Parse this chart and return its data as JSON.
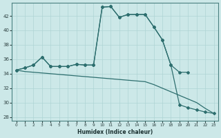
{
  "xlabel": "Humidex (Indice chaleur)",
  "x_ticks": [
    0,
    1,
    2,
    3,
    4,
    5,
    6,
    7,
    8,
    9,
    10,
    11,
    12,
    13,
    14,
    15,
    16,
    17,
    18,
    19,
    20,
    21,
    22,
    23
  ],
  "y_ticks": [
    28,
    30,
    32,
    34,
    36,
    38,
    40,
    42
  ],
  "ylim": [
    27.5,
    43.8
  ],
  "xlim": [
    -0.5,
    23.5
  ],
  "bg_color": "#cce8e8",
  "line_color": "#2d6e6e",
  "grid_color": "#aed4d4",
  "line1_x": [
    0,
    1,
    2,
    3,
    4,
    5,
    6,
    7,
    8,
    9,
    10,
    11,
    12,
    13,
    14,
    15,
    16,
    17,
    18,
    19,
    20
  ],
  "line1_y": [
    34.5,
    34.8,
    35.2,
    36.3,
    35.0,
    35.0,
    35.0,
    35.3,
    35.2,
    35.2,
    43.2,
    43.3,
    41.8,
    42.2,
    42.2,
    42.2,
    40.5,
    38.7,
    35.2,
    34.2,
    34.2
  ],
  "line2_x": [
    0,
    1,
    2,
    3,
    4,
    5,
    6,
    7,
    8,
    9,
    10,
    11,
    12,
    13,
    14,
    15,
    16,
    17,
    18,
    19,
    20,
    21,
    22,
    23
  ],
  "line2_y": [
    34.5,
    34.8,
    35.2,
    36.3,
    35.0,
    35.0,
    35.0,
    35.3,
    35.2,
    35.2,
    43.2,
    43.3,
    41.8,
    42.2,
    42.2,
    42.2,
    40.5,
    38.7,
    35.2,
    29.7,
    29.3,
    29.0,
    28.7,
    28.5
  ],
  "line3_x": [
    0,
    1,
    2,
    3,
    4,
    5,
    6,
    7,
    8,
    9,
    10,
    11,
    12,
    13,
    14,
    15,
    16,
    17,
    18,
    19,
    20,
    21,
    22,
    23
  ],
  "line3_y": [
    34.5,
    34.3,
    34.2,
    34.1,
    34.0,
    33.9,
    33.8,
    33.7,
    33.6,
    33.5,
    33.4,
    33.3,
    33.2,
    33.1,
    33.0,
    32.9,
    32.5,
    32.0,
    31.5,
    31.0,
    30.5,
    30.0,
    29.2,
    28.5
  ]
}
